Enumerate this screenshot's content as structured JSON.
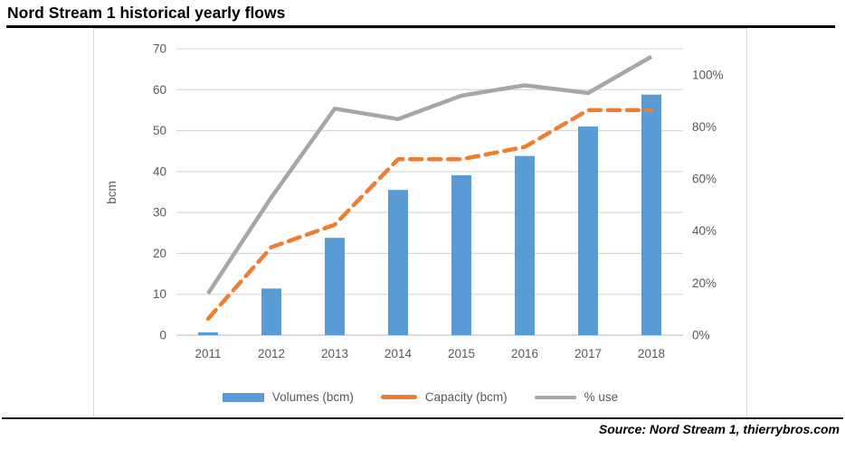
{
  "page": {
    "title": "Nord Stream 1 historical yearly flows",
    "source_note": "Source: Nord Stream 1, thierrybros.com"
  },
  "chart_data": {
    "type": "bar",
    "subtype": "combo-bar-line",
    "title": "Nord Stream 1 historical yearly flows",
    "categories": [
      "2011",
      "2012",
      "2013",
      "2014",
      "2015",
      "2016",
      "2017",
      "2018"
    ],
    "series": [
      {
        "name": "Volumes (bcm)",
        "type": "bar",
        "axis": "left",
        "color": "#5B9BD5",
        "values": [
          0.7,
          11.4,
          23.8,
          35.5,
          39.1,
          43.8,
          51,
          58.8
        ]
      },
      {
        "name": "Capacity (bcm)",
        "type": "line",
        "line_style": "dashed",
        "axis": "left",
        "color": "#ED7D31",
        "values": [
          4,
          21.5,
          27,
          43,
          43,
          46,
          55,
          55
        ]
      },
      {
        "name": "% use",
        "type": "line",
        "line_style": "solid",
        "axis": "right",
        "color": "#A6A6A6",
        "values": [
          16,
          53,
          87,
          83,
          92,
          96,
          93,
          107
        ]
      }
    ],
    "left_axis": {
      "label": "bcm",
      "min": 0,
      "max": 70,
      "ticks": [
        0,
        10,
        20,
        30,
        40,
        50,
        60,
        70
      ]
    },
    "right_axis": {
      "min": 0,
      "max": 110,
      "tick_labels": [
        "0%",
        "20%",
        "40%",
        "60%",
        "80%",
        "100%"
      ],
      "tick_values": [
        0,
        20,
        40,
        60,
        80,
        100
      ]
    },
    "grid": true,
    "legend_position": "bottom",
    "grid_color": "#D9D9D9",
    "axis_line_color": "#C6C6C6",
    "tick_text_color": "#595959"
  }
}
